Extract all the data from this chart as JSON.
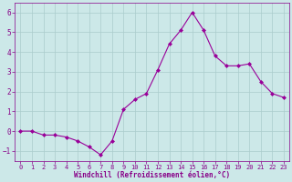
{
  "x": [
    0,
    1,
    2,
    3,
    4,
    5,
    6,
    7,
    8,
    9,
    10,
    11,
    12,
    13,
    14,
    15,
    16,
    17,
    18,
    19,
    20,
    21,
    22,
    23
  ],
  "y": [
    0.0,
    0.0,
    -0.2,
    -0.2,
    -0.3,
    -0.5,
    -0.8,
    -1.2,
    -0.5,
    1.1,
    1.6,
    1.9,
    3.1,
    4.4,
    5.1,
    6.0,
    5.1,
    3.8,
    3.3,
    3.3,
    3.4,
    2.5,
    1.9,
    1.7
  ],
  "line_color": "#990099",
  "marker": "D",
  "marker_size": 2,
  "bg_color": "#cce8e8",
  "grid_color": "#aacccc",
  "xlabel": "Windchill (Refroidissement éolien,°C)",
  "xlabel_color": "#880088",
  "tick_color": "#880088",
  "ylim": [
    -1.5,
    6.5
  ],
  "xlim": [
    -0.5,
    23.5
  ],
  "yticks": [
    -1,
    0,
    1,
    2,
    3,
    4,
    5,
    6
  ],
  "xticks": [
    0,
    1,
    2,
    3,
    4,
    5,
    6,
    7,
    8,
    9,
    10,
    11,
    12,
    13,
    14,
    15,
    16,
    17,
    18,
    19,
    20,
    21,
    22,
    23
  ],
  "tick_fontsize": 5.0,
  "xlabel_fontsize": 5.5,
  "linewidth": 0.8
}
